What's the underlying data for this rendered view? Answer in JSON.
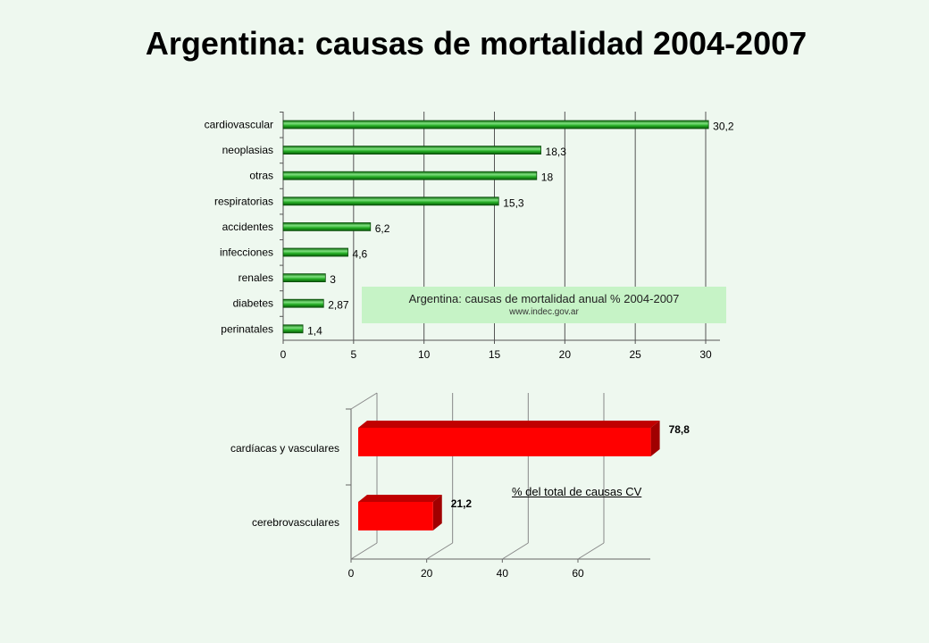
{
  "title": "Argentina: causas de mortalidad 2004-2007",
  "chart_data": [
    {
      "type": "bar",
      "orientation": "horizontal",
      "categories": [
        "cardiovascular",
        "neoplasias",
        "otras",
        "respiratorias",
        "accidentes",
        "infecciones",
        "renales",
        "diabetes",
        "perinatales"
      ],
      "values": [
        30.2,
        18.3,
        18,
        15.3,
        6.2,
        4.6,
        3,
        2.87,
        1.4
      ],
      "value_labels": [
        "30,2",
        "18,3",
        "18",
        "15,3",
        "6,2",
        "4,6",
        "3",
        "2,87",
        "1,4"
      ],
      "xlim": [
        0,
        30
      ],
      "xticks": [
        0,
        5,
        10,
        15,
        20,
        25,
        30
      ],
      "grid": true,
      "color": "#22aa22",
      "annotation": {
        "title": "Argentina: causas de mortalidad  anual %  2004-2007",
        "source": "www.indec.gov.ar"
      }
    },
    {
      "type": "bar",
      "orientation": "horizontal",
      "style": "3d",
      "categories": [
        "cardíacas y vasculares",
        "cerebrovasculares"
      ],
      "values": [
        78.8,
        21.2
      ],
      "value_labels": [
        "78,8",
        "21,2"
      ],
      "xticks": [
        0,
        20,
        40,
        60
      ],
      "grid": true,
      "color": "#ff0000",
      "annotation": "% del total de causas CV"
    }
  ]
}
